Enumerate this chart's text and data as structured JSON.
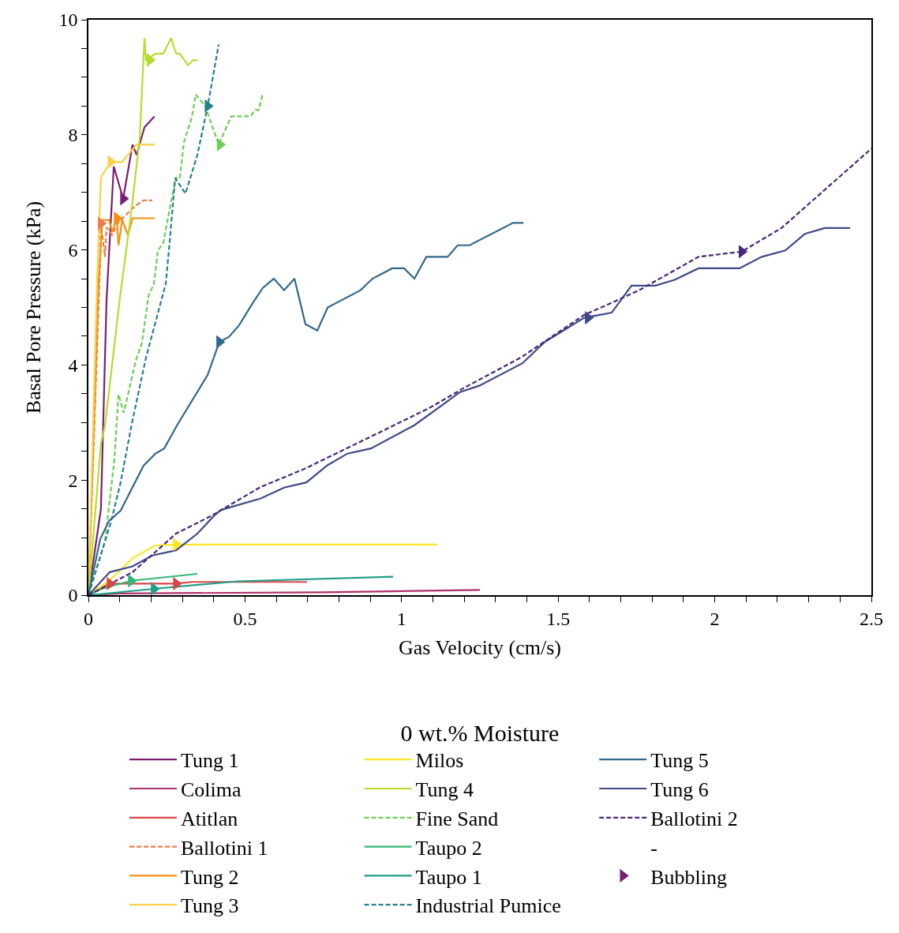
{
  "chart_data": {
    "type": "line",
    "xlabel": "Gas Velocity (cm/s)",
    "ylabel": "Basal Pore Pressure (kPa)",
    "legend_title": "0 wt.% Moisture",
    "legend": "bottom",
    "grid": false,
    "marker": "none",
    "line_style": "solid",
    "xlim": [
      0,
      2.5
    ],
    "ylim": [
      0,
      10
    ],
    "xticks": [
      0,
      {
        "value": 0.1,
        "label": null
      },
      {
        "value": 0.2,
        "label": null
      },
      {
        "value": 0.3,
        "label": null
      },
      {
        "value": 0.4,
        "label": null
      },
      0.5,
      {
        "value": 0.6,
        "label": null
      },
      {
        "value": 0.7,
        "label": null
      },
      {
        "value": 0.8,
        "label": null
      },
      {
        "value": 0.9,
        "label": null
      },
      1,
      {
        "value": 1.1,
        "label": null
      },
      {
        "value": 1.2,
        "label": null
      },
      {
        "value": 1.3,
        "label": null
      },
      {
        "value": 1.4,
        "label": null
      },
      1.5,
      {
        "value": 1.6,
        "label": null
      },
      {
        "value": 1.7,
        "label": null
      },
      {
        "value": 1.8,
        "label": null
      },
      {
        "value": 1.9,
        "label": null
      },
      2,
      {
        "value": 2.1,
        "label": null
      },
      {
        "value": 2.2,
        "label": null
      },
      {
        "value": 2.3,
        "label": null
      },
      {
        "value": 2.4,
        "label": null
      },
      2.5
    ],
    "yticks": [
      0,
      {
        "value": 0.5,
        "label": null
      },
      {
        "value": 1,
        "label": null
      },
      {
        "value": 1.5,
        "label": null
      },
      2,
      {
        "value": 2.5,
        "label": null
      },
      {
        "value": 3,
        "label": null
      },
      {
        "value": 3.5,
        "label": null
      },
      4,
      {
        "value": 4.5,
        "label": null
      },
      {
        "value": 5,
        "label": null
      },
      {
        "value": 5.5,
        "label": null
      },
      6,
      {
        "value": 6.5,
        "label": null
      },
      {
        "value": 7,
        "label": null
      },
      {
        "value": 7.5,
        "label": null
      },
      8,
      {
        "value": 8.5,
        "label": null
      },
      {
        "value": 9,
        "label": null
      },
      {
        "value": 9.5,
        "label": null
      },
      10
    ],
    "series": [
      {
        "name": "Tung 1",
        "color": "#7b1f74",
        "x": [
          0,
          0.04,
          0.058,
          0.081,
          0.111,
          0.141,
          0.154,
          0.179,
          0.211
        ],
        "values": [
          0,
          1.5,
          5.14,
          7.45,
          6.89,
          7.83,
          7.65,
          8.13,
          8.32
        ]
      },
      {
        "name": "Colima",
        "color": "#b0306a",
        "x": [
          0,
          0.1,
          0.75,
          1.25
        ],
        "values": [
          0,
          0.03,
          0.05,
          0.09
        ]
      },
      {
        "name": "Atitlan",
        "color": "#d94646",
        "x": [
          0,
          0.068,
          0.28,
          0.33,
          0.698
        ],
        "values": [
          0,
          0.2,
          0.2,
          0.23,
          0.23
        ]
      },
      {
        "name": "Ballotini 1",
        "color": "#f07a4a",
        "line_style": "dashed",
        "x": [
          0,
          0.038,
          0.04,
          0.053,
          0.058,
          0.076,
          0.096,
          0.139,
          0.154,
          0.176,
          0.204
        ],
        "values": [
          0,
          5.88,
          6.46,
          5.88,
          6.39,
          6.26,
          6.48,
          6.71,
          6.78,
          6.86,
          6.86
        ]
      },
      {
        "name": "Tung 2",
        "color": "#f5900f",
        "x": [
          0,
          0.033,
          0.045,
          0.066,
          0.076,
          0.091,
          0.096,
          0.108,
          0.126,
          0.141,
          0.211
        ],
        "values": [
          0,
          5.5,
          6.52,
          6.52,
          6.31,
          6.55,
          6.08,
          6.52,
          6.26,
          6.55,
          6.55
        ]
      },
      {
        "name": "Tung 3",
        "color": "#fcd04a",
        "x": [
          0,
          0.028,
          0.04,
          0.071,
          0.108,
          0.154,
          0.211
        ],
        "values": [
          0,
          5.5,
          7.26,
          7.53,
          7.53,
          7.83,
          7.83
        ]
      },
      {
        "name": "Milos",
        "color": "#fde725",
        "x": [
          0,
          0.068,
          0.141,
          0.212,
          0.28,
          1.114
        ],
        "values": [
          0,
          0.26,
          0.64,
          0.86,
          0.88,
          0.88
        ]
      },
      {
        "name": "Tung 4",
        "color": "#b5de2b",
        "x": [
          0,
          0.04,
          0.053,
          0.1,
          0.139,
          0.164,
          0.179,
          0.184,
          0.214,
          0.239,
          0.264,
          0.28,
          0.292,
          0.318,
          0.335,
          0.348
        ],
        "values": [
          0,
          2.63,
          2.95,
          5.14,
          6.75,
          7.96,
          9.68,
          9.3,
          9.41,
          9.41,
          9.68,
          9.41,
          9.41,
          9.21,
          9.3,
          9.3
        ]
      },
      {
        "name": "Fine Sand",
        "color": "#6ece58",
        "line_style": "dashed",
        "x": [
          0,
          0.053,
          0.083,
          0.096,
          0.113,
          0.151,
          0.171,
          0.192,
          0.209,
          0.222,
          0.239,
          0.264,
          0.28,
          0.292,
          0.305,
          0.33,
          0.343,
          0.373,
          0.416,
          0.456,
          0.517,
          0.532,
          0.544,
          0.557
        ],
        "values": [
          0,
          0.94,
          2.36,
          3.49,
          3.17,
          4.07,
          4.38,
          5.2,
          5.41,
          5.99,
          6.12,
          6.84,
          7.25,
          7.25,
          7.87,
          8.3,
          8.7,
          8.5,
          7.83,
          8.32,
          8.32,
          8.43,
          8.43,
          8.72
        ]
      },
      {
        "name": "Taupo 2",
        "color": "#35b779",
        "x": [
          0,
          0.043,
          0.136,
          0.348
        ],
        "values": [
          0,
          0.11,
          0.25,
          0.37
        ]
      },
      {
        "name": "Taupo 1",
        "color": "#1f9e89",
        "x": [
          0,
          0.209,
          0.474,
          0.973
        ],
        "values": [
          0,
          0.11,
          0.24,
          0.32
        ]
      },
      {
        "name": "Industrial Pumice",
        "color": "#26828e",
        "line_style": "dashed",
        "x": [
          0,
          0.071,
          0.103,
          0.139,
          0.184,
          0.247,
          0.26,
          0.277,
          0.31,
          0.348,
          0.381,
          0.416
        ],
        "values": [
          0,
          1.25,
          1.96,
          2.99,
          4.13,
          5.41,
          6.17,
          7.25,
          6.98,
          7.65,
          8.5,
          9.57
        ]
      },
      {
        "name": "Tung 5",
        "color": "#31688e",
        "x": [
          0,
          0.038,
          0.066,
          0.103,
          0.176,
          0.214,
          0.242,
          0.285,
          0.381,
          0.418,
          0.449,
          0.481,
          0.524,
          0.557,
          0.592,
          0.625,
          0.658,
          0.693,
          0.731,
          0.764,
          0.869,
          0.907,
          0.97,
          1.008,
          1.041,
          1.079,
          1.147,
          1.179,
          1.217,
          1.356,
          1.389
        ],
        "values": [
          0,
          0.98,
          1.29,
          1.47,
          2.25,
          2.46,
          2.55,
          2.97,
          3.83,
          4.4,
          4.49,
          4.69,
          5.07,
          5.34,
          5.5,
          5.3,
          5.5,
          4.71,
          4.6,
          5.0,
          5.3,
          5.5,
          5.68,
          5.68,
          5.5,
          5.88,
          5.88,
          6.08,
          6.08,
          6.47,
          6.47
        ]
      },
      {
        "name": "Tung 6",
        "color": "#3e4a89",
        "x": [
          0,
          0.068,
          0.141,
          0.204,
          0.28,
          0.348,
          0.401,
          0.423,
          0.55,
          0.625,
          0.696,
          0.764,
          0.827,
          0.902,
          1.04,
          1.187,
          1.248,
          1.386,
          1.457,
          1.583,
          1.671,
          1.734,
          1.81,
          1.872,
          1.948,
          2.079,
          2.15,
          2.225,
          2.288,
          2.351,
          2.432
        ],
        "values": [
          0,
          0.4,
          0.5,
          0.69,
          0.78,
          1.07,
          1.38,
          1.48,
          1.68,
          1.87,
          1.96,
          2.26,
          2.46,
          2.55,
          2.95,
          3.53,
          3.64,
          4.03,
          4.4,
          4.82,
          4.91,
          5.38,
          5.38,
          5.48,
          5.68,
          5.68,
          5.88,
          5.99,
          6.28,
          6.38,
          6.38
        ]
      },
      {
        "name": "Ballotini 2",
        "color": "#482878",
        "line_style": "dashed",
        "x": [
          0,
          0.141,
          0.28,
          0.393,
          0.55,
          0.688,
          0.915,
          1.091,
          1.205,
          1.381,
          1.583,
          1.683,
          1.759,
          1.948,
          2.086,
          2.213,
          2.5
        ],
        "values": [
          0,
          0.4,
          1.07,
          1.38,
          1.88,
          2.19,
          2.79,
          3.26,
          3.62,
          4.13,
          4.87,
          5.11,
          5.3,
          5.88,
          5.97,
          6.38,
          7.76
        ]
      },
      {
        "name": "-",
        "x": [
          null
        ],
        "values": [
          null
        ]
      },
      {
        "name": "Bubbling",
        "type": "scatter",
        "marker": "triangle",
        "x": [
          0.111,
          0.068,
          0.28,
          0.04,
          0.091,
          0.071,
          0.28,
          0.196,
          0.42,
          0.136,
          0.209,
          0.381,
          0.418,
          1.595,
          2.086
        ],
        "values": [
          6.89,
          0.2,
          0.2,
          6.46,
          6.55,
          7.53,
          0.88,
          9.3,
          7.83,
          0.25,
          0.11,
          8.5,
          4.4,
          4.82,
          5.97
        ],
        "colors": [
          "#7b1f74",
          "#d94646",
          "#d94646",
          "#f07a4a",
          "#f5900f",
          "#fcd04a",
          "#fde725",
          "#b5de2b",
          "#6ece58",
          "#35b779",
          "#1f9e89",
          "#26828e",
          "#31688e",
          "#3e4a89",
          "#482878"
        ]
      }
    ]
  }
}
